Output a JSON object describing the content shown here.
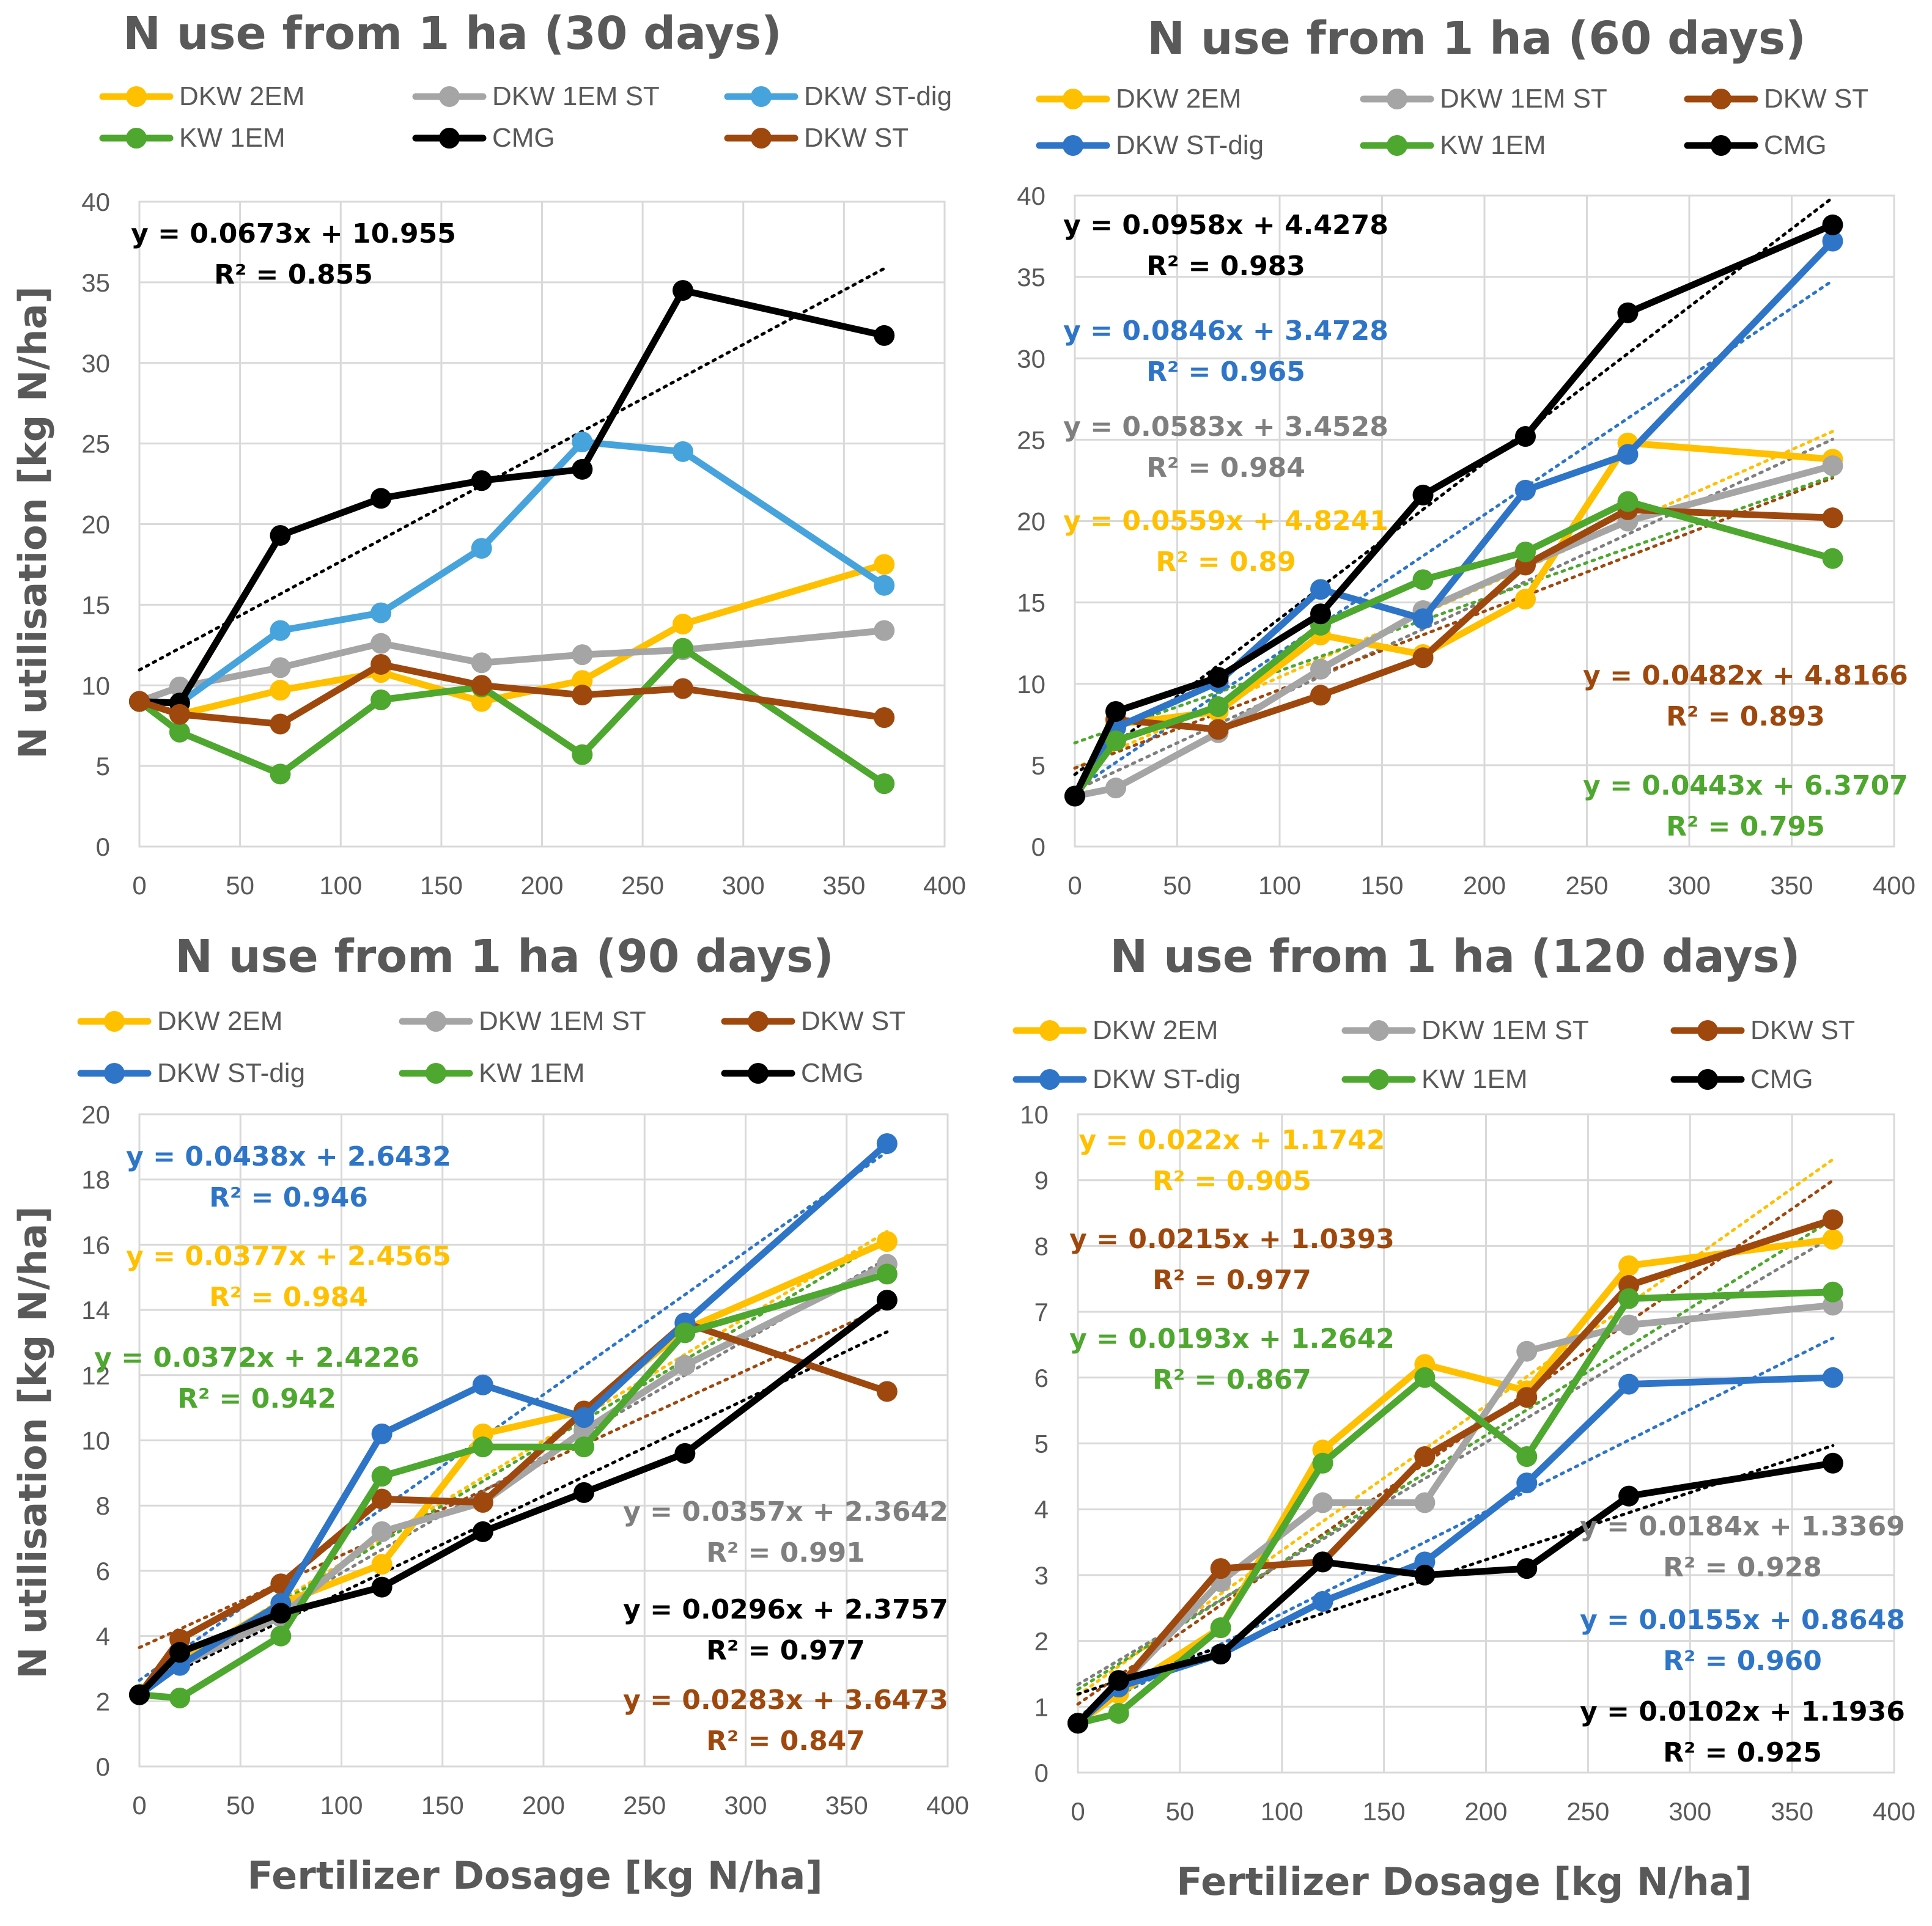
{
  "figure": {
    "ylabel": "N utilisation [kg N/ha]",
    "xlabel": "Fertilizer Dosage [kg N/ha]"
  },
  "colors": {
    "DKW 2EM": "#ffc000",
    "DKW 1EM ST": "#a5a5a5",
    "DKW ST-dig": "#2e75c8",
    "DKW ST-dig (30d)": "#46a3dc",
    "KW 1EM": "#4ea72e",
    "CMG": "#000000",
    "DKW ST": "#9e480e"
  },
  "chart_data": [
    {
      "type": "line",
      "title": "N use from 1 ha (30 days)",
      "xlabel": "",
      "ylabel": "N utilisation [kg N/ha]",
      "xlim": [
        0,
        400
      ],
      "ylim": [
        0,
        40
      ],
      "xticks": [
        "0",
        "50",
        "100",
        "150",
        "200",
        "250",
        "300",
        "350",
        "400"
      ],
      "yticks": [
        "0",
        "5",
        "10",
        "15",
        "20",
        "25",
        "30",
        "35",
        "40"
      ],
      "x": [
        0,
        20,
        70,
        120,
        170,
        220,
        270,
        370
      ],
      "legend": [
        "DKW 2EM",
        "DKW 1EM ST",
        "DKW ST-dig",
        "KW 1EM",
        "CMG",
        "DKW ST"
      ],
      "series": [
        {
          "name": "DKW 2EM",
          "color": "#ffc000",
          "values": [
            9.0,
            8.2,
            9.7,
            10.8,
            9.0,
            10.3,
            13.8,
            17.5
          ]
        },
        {
          "name": "DKW 1EM ST",
          "color": "#a5a5a5",
          "values": [
            9.0,
            9.9,
            11.1,
            12.6,
            11.4,
            11.9,
            12.2,
            13.4
          ]
        },
        {
          "name": "DKW ST-dig",
          "color": "#46a3dc",
          "values": [
            9.0,
            8.9,
            13.4,
            14.5,
            18.5,
            25.1,
            24.5,
            16.2
          ]
        },
        {
          "name": "KW 1EM",
          "color": "#4ea72e",
          "values": [
            9.0,
            7.1,
            4.5,
            9.1,
            9.9,
            5.7,
            12.3,
            3.9
          ]
        },
        {
          "name": "CMG",
          "color": "#000000",
          "values": [
            9.0,
            8.9,
            19.3,
            21.6,
            22.7,
            23.4,
            34.5,
            31.7
          ]
        },
        {
          "name": "DKW ST",
          "color": "#9e480e",
          "values": [
            9.0,
            8.2,
            7.6,
            11.3,
            10.0,
            9.4,
            9.8,
            8.0
          ]
        }
      ],
      "trendlines": [
        {
          "series": "CMG",
          "slope": 0.0673,
          "intercept": 10.955,
          "equation": "y = 0.0673x + 10.955",
          "r2": "R² = 0.855",
          "color": "#000000"
        }
      ]
    },
    {
      "type": "line",
      "title": "N use from 1 ha (60 days)",
      "xlabel": "",
      "ylabel": "",
      "xlim": [
        0,
        400
      ],
      "ylim": [
        0,
        40
      ],
      "xticks": [
        "0",
        "50",
        "100",
        "150",
        "200",
        "250",
        "300",
        "350",
        "400"
      ],
      "yticks": [
        "0",
        "5",
        "10",
        "15",
        "20",
        "25",
        "30",
        "35",
        "40"
      ],
      "x": [
        0,
        20,
        70,
        120,
        170,
        220,
        270,
        370
      ],
      "legend": [
        "DKW 2EM",
        "DKW 1EM ST",
        "DKW ST",
        "DKW ST-dig",
        "KW 1EM",
        "CMG"
      ],
      "series": [
        {
          "name": "DKW 2EM",
          "color": "#ffc000",
          "values": [
            3.1,
            7.5,
            8.3,
            13.0,
            11.8,
            15.2,
            24.8,
            23.8
          ]
        },
        {
          "name": "DKW 1EM ST",
          "color": "#a5a5a5",
          "values": [
            3.1,
            3.6,
            7.0,
            10.9,
            14.5,
            17.3,
            20.0,
            23.4
          ]
        },
        {
          "name": "DKW ST",
          "color": "#9e480e",
          "values": [
            3.1,
            7.8,
            7.2,
            9.3,
            11.6,
            17.3,
            20.7,
            20.2
          ]
        },
        {
          "name": "DKW ST-dig",
          "color": "#2e75c8",
          "values": [
            3.1,
            7.3,
            10.1,
            15.8,
            14.0,
            21.9,
            24.1,
            37.2
          ]
        },
        {
          "name": "KW 1EM",
          "color": "#4ea72e",
          "values": [
            3.1,
            6.5,
            8.6,
            13.6,
            16.4,
            18.1,
            21.2,
            17.7
          ]
        },
        {
          "name": "CMG",
          "color": "#000000",
          "values": [
            3.1,
            8.3,
            10.4,
            14.3,
            21.6,
            25.2,
            32.8,
            38.2
          ]
        }
      ],
      "trendlines": [
        {
          "series": "CMG",
          "slope": 0.0958,
          "intercept": 4.4278,
          "equation": "y = 0.0958x + 4.4278",
          "r2": "R² = 0.983",
          "color": "#000000"
        },
        {
          "series": "DKW ST-dig",
          "slope": 0.0846,
          "intercept": 3.4728,
          "equation": "y = 0.0846x + 3.4728",
          "r2": "R² = 0.965",
          "color": "#2e75c8"
        },
        {
          "series": "DKW 1EM ST",
          "slope": 0.0583,
          "intercept": 3.4528,
          "equation": "y = 0.0583x + 3.4528",
          "r2": "R² = 0.984",
          "color": "#7f7f7f"
        },
        {
          "series": "DKW 2EM",
          "slope": 0.0559,
          "intercept": 4.8241,
          "equation": "y = 0.0559x + 4.8241",
          "r2": "R² = 0.89",
          "color": "#ffc000"
        },
        {
          "series": "DKW ST",
          "slope": 0.0482,
          "intercept": 4.8166,
          "equation": "y = 0.0482x + 4.8166",
          "r2": "R² = 0.893",
          "color": "#9e480e"
        },
        {
          "series": "KW 1EM",
          "slope": 0.0443,
          "intercept": 6.3707,
          "equation": "y = 0.0443x + 6.3707",
          "r2": "R² = 0.795",
          "color": "#4ea72e"
        }
      ]
    },
    {
      "type": "line",
      "title": "N use from 1 ha (90 days)",
      "xlabel": "Fertilizer Dosage [kg N/ha]",
      "ylabel": "N utilisation [kg N/ha]",
      "xlim": [
        0,
        400
      ],
      "ylim": [
        0,
        20
      ],
      "xticks": [
        "0",
        "50",
        "100",
        "150",
        "200",
        "250",
        "300",
        "350",
        "400"
      ],
      "yticks": [
        "0",
        "2",
        "4",
        "6",
        "8",
        "10",
        "12",
        "14",
        "16",
        "18",
        "20"
      ],
      "x": [
        0,
        20,
        70,
        120,
        170,
        220,
        270,
        370
      ],
      "legend": [
        "DKW 2EM",
        "DKW 1EM ST",
        "DKW ST",
        "DKW ST-dig",
        "KW 1EM",
        "CMG"
      ],
      "series": [
        {
          "name": "DKW 2EM",
          "color": "#ffc000",
          "values": [
            2.2,
            3.2,
            5.0,
            6.2,
            10.2,
            10.9,
            13.4,
            16.1
          ]
        },
        {
          "name": "DKW 1EM ST",
          "color": "#a5a5a5",
          "values": [
            2.2,
            3.1,
            4.6,
            7.2,
            8.1,
            10.3,
            12.3,
            15.4
          ]
        },
        {
          "name": "DKW ST",
          "color": "#9e480e",
          "values": [
            2.2,
            3.9,
            5.6,
            8.2,
            8.1,
            10.9,
            13.6,
            11.5
          ]
        },
        {
          "name": "DKW ST-dig",
          "color": "#2e75c8",
          "values": [
            2.2,
            3.1,
            5.0,
            10.2,
            11.7,
            10.7,
            13.6,
            19.1
          ]
        },
        {
          "name": "KW 1EM",
          "color": "#4ea72e",
          "values": [
            2.2,
            2.1,
            4.0,
            8.9,
            9.8,
            9.8,
            13.3,
            15.1
          ]
        },
        {
          "name": "CMG",
          "color": "#000000",
          "values": [
            2.2,
            3.5,
            4.7,
            5.5,
            7.2,
            8.4,
            9.6,
            14.3
          ]
        }
      ],
      "trendlines": [
        {
          "series": "DKW ST-dig",
          "slope": 0.0438,
          "intercept": 2.6432,
          "equation": "y = 0.0438x + 2.6432",
          "r2": "R² = 0.946",
          "color": "#2e75c8"
        },
        {
          "series": "DKW 2EM",
          "slope": 0.0377,
          "intercept": 2.4565,
          "equation": "y = 0.0377x + 2.4565",
          "r2": "R² = 0.984",
          "color": "#ffc000"
        },
        {
          "series": "KW 1EM",
          "slope": 0.0372,
          "intercept": 2.4226,
          "equation": "y = 0.0372x + 2.4226",
          "r2": "R² = 0.942",
          "color": "#4ea72e"
        },
        {
          "series": "DKW 1EM ST",
          "slope": 0.0357,
          "intercept": 2.3642,
          "equation": "y = 0.0357x + 2.3642",
          "r2": "R² = 0.991",
          "color": "#7f7f7f"
        },
        {
          "series": "CMG",
          "slope": 0.0296,
          "intercept": 2.3757,
          "equation": "y = 0.0296x + 2.3757",
          "r2": "R² = 0.977",
          "color": "#000000"
        },
        {
          "series": "DKW ST",
          "slope": 0.0283,
          "intercept": 3.6473,
          "equation": "y = 0.0283x + 3.6473",
          "r2": "R² = 0.847",
          "color": "#9e480e"
        }
      ]
    },
    {
      "type": "line",
      "title": "N use from 1 ha (120 days)",
      "xlabel": "Fertilizer Dosage [kg N/ha]",
      "ylabel": "",
      "xlim": [
        0,
        400
      ],
      "ylim": [
        0,
        10
      ],
      "xticks": [
        "0",
        "50",
        "100",
        "150",
        "200",
        "250",
        "300",
        "350",
        "400"
      ],
      "yticks": [
        "0",
        "1",
        "2",
        "3",
        "4",
        "5",
        "6",
        "7",
        "8",
        "9",
        "10"
      ],
      "x": [
        0,
        20,
        70,
        120,
        170,
        220,
        270,
        370
      ],
      "legend": [
        "DKW 2EM",
        "DKW 1EM ST",
        "DKW ST",
        "DKW ST-dig",
        "KW 1EM",
        "CMG"
      ],
      "series": [
        {
          "name": "DKW 2EM",
          "color": "#ffc000",
          "values": [
            0.75,
            1.2,
            2.2,
            4.9,
            6.2,
            5.8,
            7.7,
            8.1
          ]
        },
        {
          "name": "DKW 1EM ST",
          "color": "#a5a5a5",
          "values": [
            0.75,
            1.3,
            2.9,
            4.1,
            4.1,
            6.4,
            6.8,
            7.1
          ]
        },
        {
          "name": "DKW ST",
          "color": "#9e480e",
          "values": [
            0.75,
            1.3,
            3.1,
            3.2,
            4.8,
            5.7,
            7.4,
            8.4
          ]
        },
        {
          "name": "DKW ST-dig",
          "color": "#2e75c8",
          "values": [
            0.75,
            1.3,
            1.8,
            2.6,
            3.2,
            4.4,
            5.9,
            6.0
          ]
        },
        {
          "name": "KW 1EM",
          "color": "#4ea72e",
          "values": [
            0.75,
            0.9,
            2.2,
            4.7,
            6.0,
            4.8,
            7.2,
            7.3
          ]
        },
        {
          "name": "CMG",
          "color": "#000000",
          "values": [
            0.75,
            1.4,
            1.8,
            3.2,
            3.0,
            3.1,
            4.2,
            4.7
          ]
        }
      ],
      "trendlines": [
        {
          "series": "DKW 2EM",
          "slope": 0.022,
          "intercept": 1.1742,
          "equation": "y = 0.022x + 1.1742",
          "r2": "R² = 0.905",
          "color": "#ffc000"
        },
        {
          "series": "DKW ST",
          "slope": 0.0215,
          "intercept": 1.0393,
          "equation": "y = 0.0215x + 1.0393",
          "r2": "R² = 0.977",
          "color": "#9e480e"
        },
        {
          "series": "KW 1EM",
          "slope": 0.0193,
          "intercept": 1.2642,
          "equation": "y = 0.0193x + 1.2642",
          "r2": "R² = 0.867",
          "color": "#4ea72e"
        },
        {
          "series": "DKW 1EM ST",
          "slope": 0.0184,
          "intercept": 1.3369,
          "equation": "y = 0.0184x + 1.3369",
          "r2": "R² = 0.928",
          "color": "#7f7f7f"
        },
        {
          "series": "DKW ST-dig",
          "slope": 0.0155,
          "intercept": 0.8648,
          "equation": "y = 0.0155x + 0.8648",
          "r2": "R² = 0.960",
          "color": "#2e75c8"
        },
        {
          "series": "CMG",
          "slope": 0.0102,
          "intercept": 1.1936,
          "equation": "y = 0.0102x + 1.1936",
          "r2": "R² = 0.925",
          "color": "#000000"
        }
      ]
    }
  ]
}
